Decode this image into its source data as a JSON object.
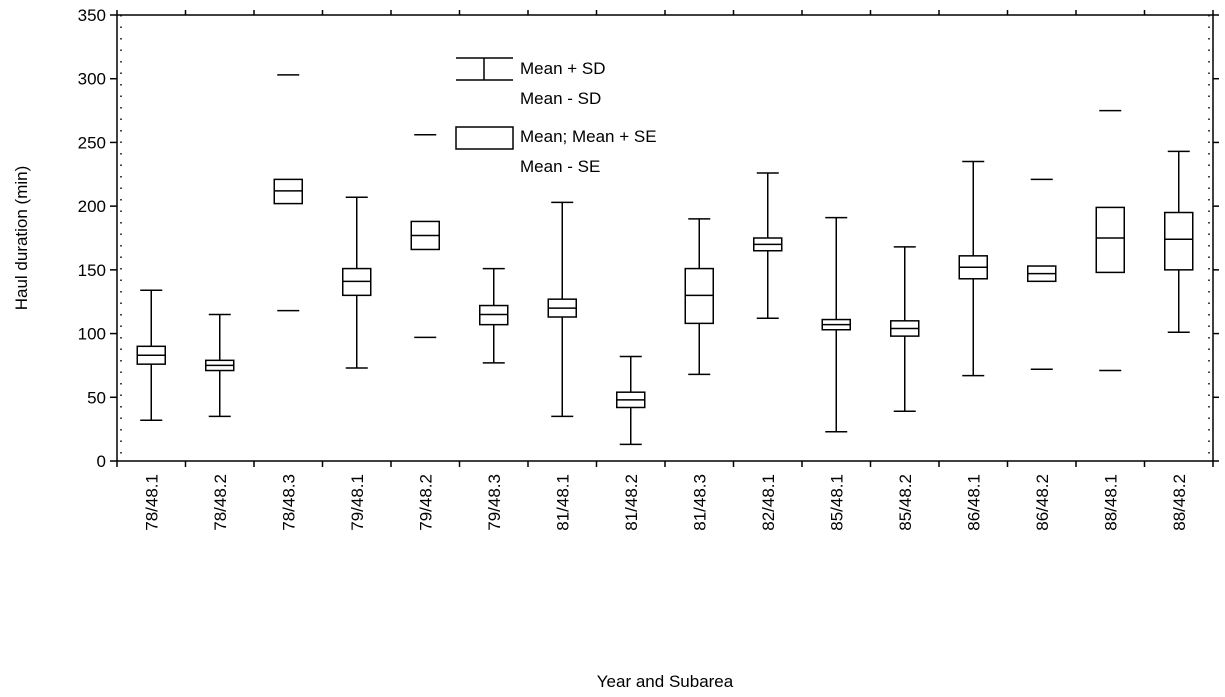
{
  "chart_data": {
    "type": "box",
    "xlabel": "Year and Subarea",
    "ylabel": "Haul duration (min)",
    "ylim": [
      0,
      350
    ],
    "yticks": [
      0,
      50,
      100,
      150,
      200,
      250,
      300,
      350
    ],
    "legend": {
      "position": "top-center",
      "whisker_top": "Mean + SD",
      "whisker_bottom": "Mean - SD",
      "box_top": "Mean; Mean + SE",
      "box_bottom": "Mean - SE"
    },
    "categories": [
      "78/48.1",
      "78/48.2",
      "78/48.3",
      "79/48.1",
      "79/48.2",
      "79/48.3",
      "81/48.1",
      "81/48.2",
      "81/48.3",
      "82/48.1",
      "85/48.1",
      "85/48.2",
      "86/48.1",
      "86/48.2",
      "88/48.1",
      "88/48.2"
    ],
    "mean": [
      83,
      75,
      212,
      141,
      177,
      115,
      120,
      48,
      130,
      170,
      107,
      104,
      152,
      147,
      175,
      174
    ],
    "se_low": [
      76,
      71,
      202,
      130,
      166,
      107,
      113,
      42,
      108,
      165,
      103,
      98,
      143,
      141,
      148,
      150
    ],
    "se_high": [
      90,
      79,
      221,
      151,
      188,
      122,
      127,
      54,
      151,
      175,
      111,
      110,
      161,
      153,
      199,
      195
    ],
    "sd_low": [
      32,
      35,
      118,
      73,
      97,
      77,
      35,
      13,
      68,
      112,
      23,
      39,
      67,
      72,
      71,
      101
    ],
    "sd_high": [
      134,
      115,
      303,
      207,
      256,
      151,
      203,
      82,
      190,
      226,
      191,
      168,
      235,
      221,
      275,
      243
    ],
    "whiskers_drawn": [
      true,
      true,
      false,
      true,
      false,
      true,
      true,
      true,
      true,
      true,
      true,
      true,
      true,
      false,
      false,
      true
    ]
  }
}
